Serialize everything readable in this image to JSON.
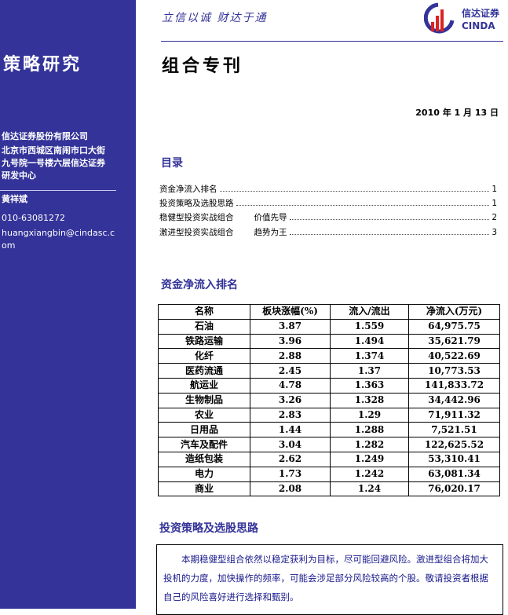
{
  "sidebar": {
    "category": "策略研究",
    "company": "信达证券股份有限公司",
    "address": [
      "北京市西城区南闹市口大街",
      "九号院一号楼六层信达证券",
      "研发中心"
    ],
    "analyst": "黄祥斌",
    "phone": "010-63081272",
    "email": [
      "huangxiangbin@cindasc.c",
      "om"
    ]
  },
  "header": {
    "motto": "立信以诚 财达于通",
    "logo_cn": "信达证券",
    "logo_en": "CINDA",
    "brand_color": "#333399"
  },
  "title": "组合专刊",
  "date": "2010 年 1 月 13 日",
  "toc": {
    "heading": "目录",
    "items": [
      {
        "label": "资金净流入排名",
        "sub": "",
        "page": "1"
      },
      {
        "label": "投资策略及选股思路",
        "sub": "",
        "page": "1"
      },
      {
        "label": "稳健型投资实战组合",
        "sub": "价值先导",
        "page": "2"
      },
      {
        "label": "激进型投资实战组合",
        "sub": "趋势为王",
        "page": "3"
      }
    ]
  },
  "section1": {
    "heading": "资金净流入排名",
    "columns": [
      "名称",
      "板块涨幅(%)",
      "流入/流出",
      "净流入(万元)"
    ],
    "rows": [
      [
        "石油",
        "3.87",
        "1.559",
        "64,975.75"
      ],
      [
        "铁路运输",
        "3.96",
        "1.494",
        "35,621.79"
      ],
      [
        "化纤",
        "2.88",
        "1.374",
        "40,522.69"
      ],
      [
        "医药流通",
        "2.45",
        "1.37",
        "10,773.53"
      ],
      [
        "航运业",
        "4.78",
        "1.363",
        "141,833.72"
      ],
      [
        "生物制品",
        "3.26",
        "1.328",
        "34,442.96"
      ],
      [
        "农业",
        "2.83",
        "1.29",
        "71,911.32"
      ],
      [
        "日用品",
        "1.44",
        "1.288",
        "7,521.51"
      ],
      [
        "汽车及配件",
        "3.04",
        "1.282",
        "122,625.52"
      ],
      [
        "造纸包装",
        "2.62",
        "1.249",
        "53,310.41"
      ],
      [
        "电力",
        "1.73",
        "1.242",
        "63,081.34"
      ],
      [
        "商业",
        "2.08",
        "1.24",
        "76,020.17"
      ]
    ]
  },
  "section2": {
    "heading": "投资策略及选股思路",
    "body": "本期稳健型组合依然以稳定获利为目标，尽可能回避风险。激进型组合将加大投机的力度，加快操作的频率，可能会涉足部分风险较高的个股。敬请投资者根据自己的风险喜好进行选择和甄别。"
  }
}
